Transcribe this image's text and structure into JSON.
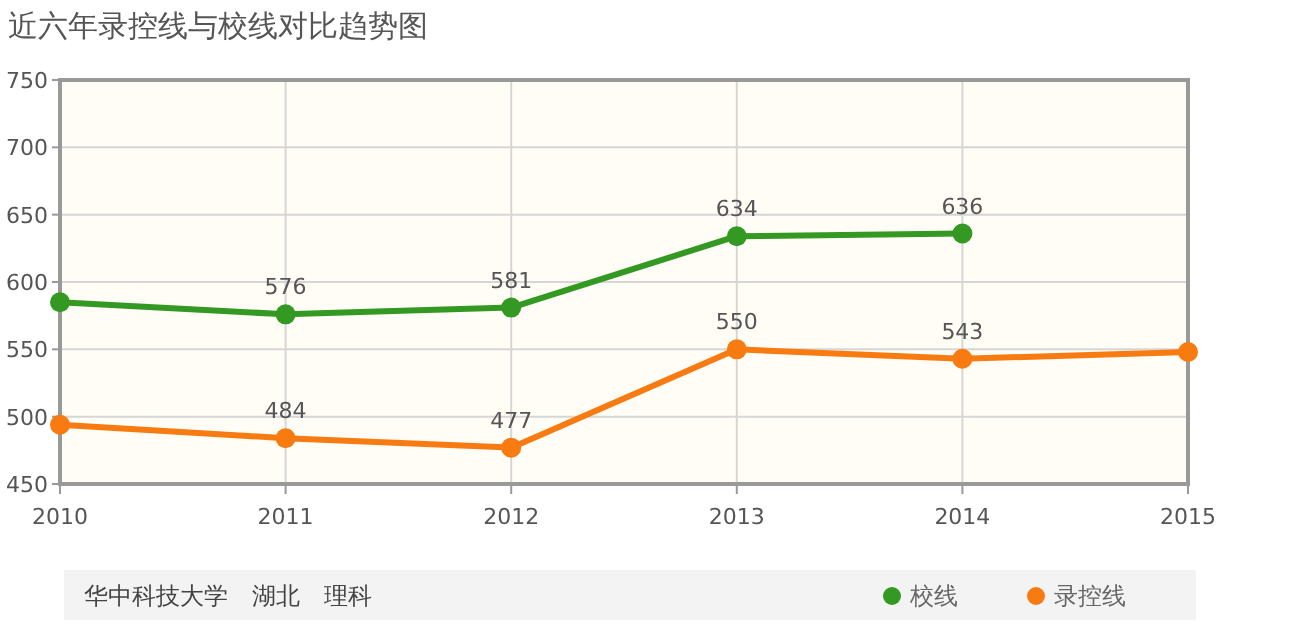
{
  "chart_data": {
    "type": "line",
    "title": "近六年录控线与校线对比趋势图",
    "x": [
      2010,
      2011,
      2012,
      2013,
      2014,
      2015
    ],
    "xlim": [
      2010,
      2015
    ],
    "xticks": [
      2010,
      2011,
      2012,
      2013,
      2014,
      2015
    ],
    "ylim": [
      450,
      750
    ],
    "yticks": [
      450,
      500,
      550,
      600,
      650,
      700,
      750
    ],
    "series": [
      {
        "name": "校线",
        "color": "#339922",
        "values": [
          585,
          576,
          581,
          634,
          636,
          null
        ],
        "value_labels": [
          null,
          "576",
          "581",
          "634",
          "636",
          null
        ]
      },
      {
        "name": "录控线",
        "color": "#f77b11",
        "values": [
          494,
          484,
          477,
          550,
          543,
          548
        ],
        "value_labels": [
          null,
          "484",
          "477",
          "550",
          "543",
          null
        ]
      }
    ],
    "marker": "circle",
    "grid": true,
    "legend": "bottom right",
    "annotations": [
      "华中科技大学　湖北　理科"
    ]
  }
}
